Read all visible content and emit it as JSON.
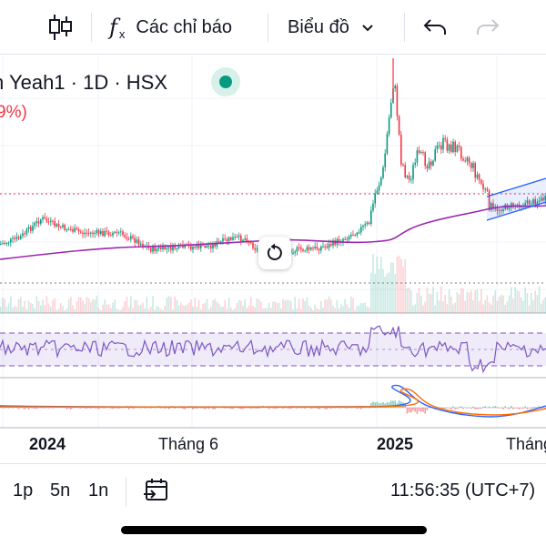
{
  "toolbar": {
    "indicators_label": "Các chỉ báo",
    "chart_type_label": "Biểu đồ"
  },
  "legend": {
    "title": "n Yeah1 · 1D · HSX",
    "change": "9%)"
  },
  "time_axis": {
    "labels": [
      "2024",
      "Tháng 6",
      "2025",
      "Tháng"
    ]
  },
  "bottom_bar": {
    "intervals": [
      "1p",
      "5n",
      "1n"
    ],
    "clock": "11:56:35 (UTC+7)"
  },
  "colors": {
    "up": "#089981",
    "down": "#f23645",
    "ma": "#9c27b0",
    "rsi": "#7e57c2",
    "macd": "#2962ff",
    "signal": "#ff6d00",
    "channel": "#2962ff"
  }
}
